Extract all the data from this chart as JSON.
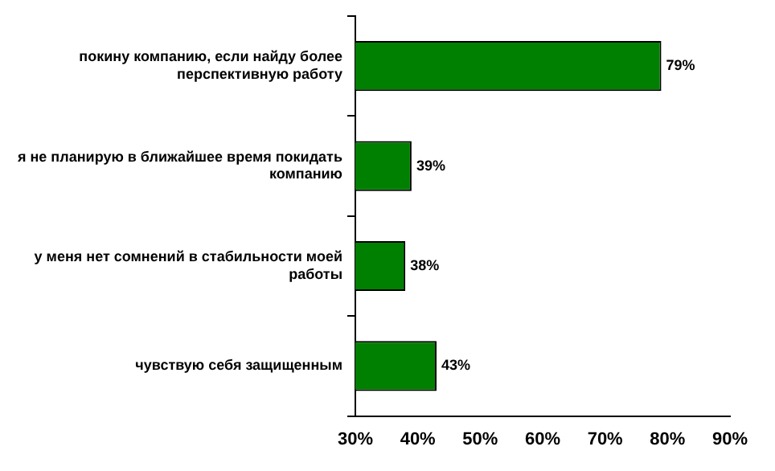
{
  "chart_data": {
    "type": "bar",
    "orientation": "horizontal",
    "categories": [
      "покину компанию, если найду более перспективную работу",
      "я не планирую в ближайшее время покидать компанию",
      "у меня нет сомнений в стабильности моей работы",
      "чувствую себя защищенным"
    ],
    "values": [
      79,
      39,
      38,
      43
    ],
    "color": "#008000",
    "value_labels": [
      "79%",
      "39%",
      "38%",
      "43%"
    ],
    "xlim": [
      30,
      90
    ],
    "xticks": [
      {
        "value": 30,
        "label": "30%"
      },
      {
        "value": 40,
        "label": "40%"
      },
      {
        "value": 50,
        "label": "50%"
      },
      {
        "value": 60,
        "label": "60%"
      },
      {
        "value": 70,
        "label": "70%"
      },
      {
        "value": 80,
        "label": "80%"
      },
      {
        "value": 90,
        "label": "90%"
      }
    ],
    "grid": false,
    "legend": false
  }
}
